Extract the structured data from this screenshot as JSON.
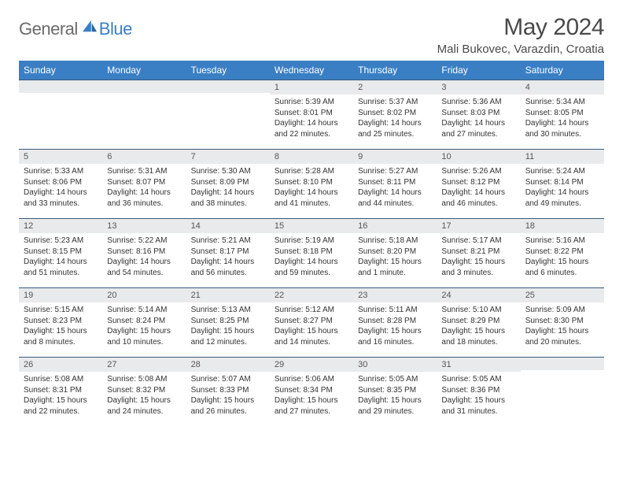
{
  "brand": {
    "part1": "General",
    "part2": "Blue"
  },
  "title": "May 2024",
  "location": "Mali Bukovec, Varazdin, Croatia",
  "colors": {
    "header_bg": "#3a7fc4",
    "header_text": "#ffffff",
    "daynum_bg": "#e9eaec",
    "rule": "#3a5a7a",
    "body_text": "#333333",
    "title_text": "#4a4a4a",
    "logo_gray": "#6b6b6b",
    "logo_blue": "#3a7fc4"
  },
  "weekdays": [
    "Sunday",
    "Monday",
    "Tuesday",
    "Wednesday",
    "Thursday",
    "Friday",
    "Saturday"
  ],
  "weeks": [
    [
      {
        "n": "",
        "sr": "",
        "ss": "",
        "dl": ""
      },
      {
        "n": "",
        "sr": "",
        "ss": "",
        "dl": ""
      },
      {
        "n": "",
        "sr": "",
        "ss": "",
        "dl": ""
      },
      {
        "n": "1",
        "sr": "Sunrise: 5:39 AM",
        "ss": "Sunset: 8:01 PM",
        "dl": "Daylight: 14 hours and 22 minutes."
      },
      {
        "n": "2",
        "sr": "Sunrise: 5:37 AM",
        "ss": "Sunset: 8:02 PM",
        "dl": "Daylight: 14 hours and 25 minutes."
      },
      {
        "n": "3",
        "sr": "Sunrise: 5:36 AM",
        "ss": "Sunset: 8:03 PM",
        "dl": "Daylight: 14 hours and 27 minutes."
      },
      {
        "n": "4",
        "sr": "Sunrise: 5:34 AM",
        "ss": "Sunset: 8:05 PM",
        "dl": "Daylight: 14 hours and 30 minutes."
      }
    ],
    [
      {
        "n": "5",
        "sr": "Sunrise: 5:33 AM",
        "ss": "Sunset: 8:06 PM",
        "dl": "Daylight: 14 hours and 33 minutes."
      },
      {
        "n": "6",
        "sr": "Sunrise: 5:31 AM",
        "ss": "Sunset: 8:07 PM",
        "dl": "Daylight: 14 hours and 36 minutes."
      },
      {
        "n": "7",
        "sr": "Sunrise: 5:30 AM",
        "ss": "Sunset: 8:09 PM",
        "dl": "Daylight: 14 hours and 38 minutes."
      },
      {
        "n": "8",
        "sr": "Sunrise: 5:28 AM",
        "ss": "Sunset: 8:10 PM",
        "dl": "Daylight: 14 hours and 41 minutes."
      },
      {
        "n": "9",
        "sr": "Sunrise: 5:27 AM",
        "ss": "Sunset: 8:11 PM",
        "dl": "Daylight: 14 hours and 44 minutes."
      },
      {
        "n": "10",
        "sr": "Sunrise: 5:26 AM",
        "ss": "Sunset: 8:12 PM",
        "dl": "Daylight: 14 hours and 46 minutes."
      },
      {
        "n": "11",
        "sr": "Sunrise: 5:24 AM",
        "ss": "Sunset: 8:14 PM",
        "dl": "Daylight: 14 hours and 49 minutes."
      }
    ],
    [
      {
        "n": "12",
        "sr": "Sunrise: 5:23 AM",
        "ss": "Sunset: 8:15 PM",
        "dl": "Daylight: 14 hours and 51 minutes."
      },
      {
        "n": "13",
        "sr": "Sunrise: 5:22 AM",
        "ss": "Sunset: 8:16 PM",
        "dl": "Daylight: 14 hours and 54 minutes."
      },
      {
        "n": "14",
        "sr": "Sunrise: 5:21 AM",
        "ss": "Sunset: 8:17 PM",
        "dl": "Daylight: 14 hours and 56 minutes."
      },
      {
        "n": "15",
        "sr": "Sunrise: 5:19 AM",
        "ss": "Sunset: 8:18 PM",
        "dl": "Daylight: 14 hours and 59 minutes."
      },
      {
        "n": "16",
        "sr": "Sunrise: 5:18 AM",
        "ss": "Sunset: 8:20 PM",
        "dl": "Daylight: 15 hours and 1 minute."
      },
      {
        "n": "17",
        "sr": "Sunrise: 5:17 AM",
        "ss": "Sunset: 8:21 PM",
        "dl": "Daylight: 15 hours and 3 minutes."
      },
      {
        "n": "18",
        "sr": "Sunrise: 5:16 AM",
        "ss": "Sunset: 8:22 PM",
        "dl": "Daylight: 15 hours and 6 minutes."
      }
    ],
    [
      {
        "n": "19",
        "sr": "Sunrise: 5:15 AM",
        "ss": "Sunset: 8:23 PM",
        "dl": "Daylight: 15 hours and 8 minutes."
      },
      {
        "n": "20",
        "sr": "Sunrise: 5:14 AM",
        "ss": "Sunset: 8:24 PM",
        "dl": "Daylight: 15 hours and 10 minutes."
      },
      {
        "n": "21",
        "sr": "Sunrise: 5:13 AM",
        "ss": "Sunset: 8:25 PM",
        "dl": "Daylight: 15 hours and 12 minutes."
      },
      {
        "n": "22",
        "sr": "Sunrise: 5:12 AM",
        "ss": "Sunset: 8:27 PM",
        "dl": "Daylight: 15 hours and 14 minutes."
      },
      {
        "n": "23",
        "sr": "Sunrise: 5:11 AM",
        "ss": "Sunset: 8:28 PM",
        "dl": "Daylight: 15 hours and 16 minutes."
      },
      {
        "n": "24",
        "sr": "Sunrise: 5:10 AM",
        "ss": "Sunset: 8:29 PM",
        "dl": "Daylight: 15 hours and 18 minutes."
      },
      {
        "n": "25",
        "sr": "Sunrise: 5:09 AM",
        "ss": "Sunset: 8:30 PM",
        "dl": "Daylight: 15 hours and 20 minutes."
      }
    ],
    [
      {
        "n": "26",
        "sr": "Sunrise: 5:08 AM",
        "ss": "Sunset: 8:31 PM",
        "dl": "Daylight: 15 hours and 22 minutes."
      },
      {
        "n": "27",
        "sr": "Sunrise: 5:08 AM",
        "ss": "Sunset: 8:32 PM",
        "dl": "Daylight: 15 hours and 24 minutes."
      },
      {
        "n": "28",
        "sr": "Sunrise: 5:07 AM",
        "ss": "Sunset: 8:33 PM",
        "dl": "Daylight: 15 hours and 26 minutes."
      },
      {
        "n": "29",
        "sr": "Sunrise: 5:06 AM",
        "ss": "Sunset: 8:34 PM",
        "dl": "Daylight: 15 hours and 27 minutes."
      },
      {
        "n": "30",
        "sr": "Sunrise: 5:05 AM",
        "ss": "Sunset: 8:35 PM",
        "dl": "Daylight: 15 hours and 29 minutes."
      },
      {
        "n": "31",
        "sr": "Sunrise: 5:05 AM",
        "ss": "Sunset: 8:36 PM",
        "dl": "Daylight: 15 hours and 31 minutes."
      },
      {
        "n": "",
        "sr": "",
        "ss": "",
        "dl": ""
      }
    ]
  ]
}
